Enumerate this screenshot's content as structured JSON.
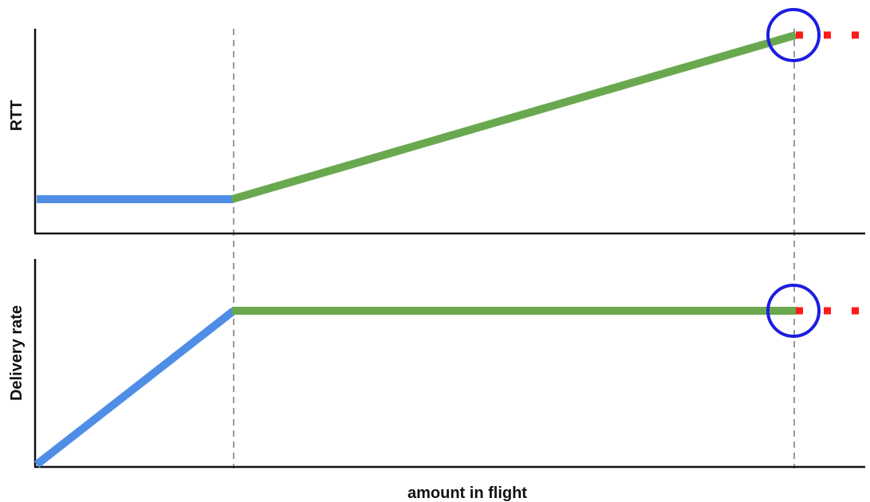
{
  "diagram": {
    "xlabel": "amount in flight",
    "colors": {
      "first_regime": "#4f8ee6",
      "second_regime": "#6aa84f",
      "beyond_region": "#ff1a1a",
      "highlight_circle": "#1d1de0",
      "axis": "#111111",
      "divider": "#9a9a9a"
    },
    "panels": [
      {
        "ylabel": "RTT",
        "segments": [
          {
            "regime": "first_regime",
            "shape": "flat"
          },
          {
            "regime": "second_regime",
            "shape": "rising"
          },
          {
            "regime": "beyond_region",
            "shape": "dotted-continuation"
          }
        ]
      },
      {
        "ylabel": "Delivery rate",
        "segments": [
          {
            "regime": "first_regime",
            "shape": "rising"
          },
          {
            "regime": "second_regime",
            "shape": "flat"
          },
          {
            "regime": "beyond_region",
            "shape": "dotted-continuation"
          }
        ]
      }
    ],
    "markers": [
      "highlight-circle",
      "highlight-circle"
    ]
  }
}
